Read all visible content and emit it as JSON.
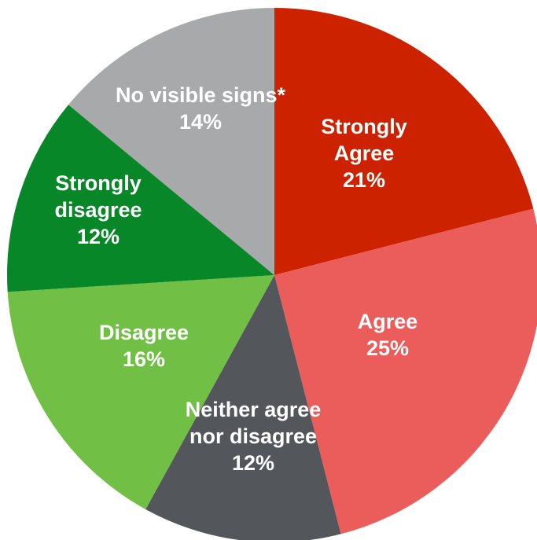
{
  "chart_data": {
    "type": "pie",
    "title": "",
    "slices": [
      {
        "label": "Strongly Agree",
        "label_lines": [
          "Strongly",
          "Agree"
        ],
        "value": 21,
        "value_label": "21%",
        "color": "#cc2200"
      },
      {
        "label": "Agree",
        "label_lines": [
          "Agree"
        ],
        "value": 25,
        "value_label": "25%",
        "color": "#ea5d5a"
      },
      {
        "label": "Neither agree nor disagree",
        "label_lines": [
          "Neither agree",
          "nor disagree"
        ],
        "value": 12,
        "value_label": "12%",
        "color": "#53565b"
      },
      {
        "label": "Disagree",
        "label_lines": [
          "Disagree"
        ],
        "value": 16,
        "value_label": "16%",
        "color": "#71bf45"
      },
      {
        "label": "Strongly disagree",
        "label_lines": [
          "Strongly",
          "disagree"
        ],
        "value": 12,
        "value_label": "12%",
        "color": "#078728"
      },
      {
        "label": "No visible signs*",
        "label_lines": [
          "No visible signs*"
        ],
        "value": 14,
        "value_label": "14%",
        "color": "#a7a9aa"
      }
    ]
  }
}
